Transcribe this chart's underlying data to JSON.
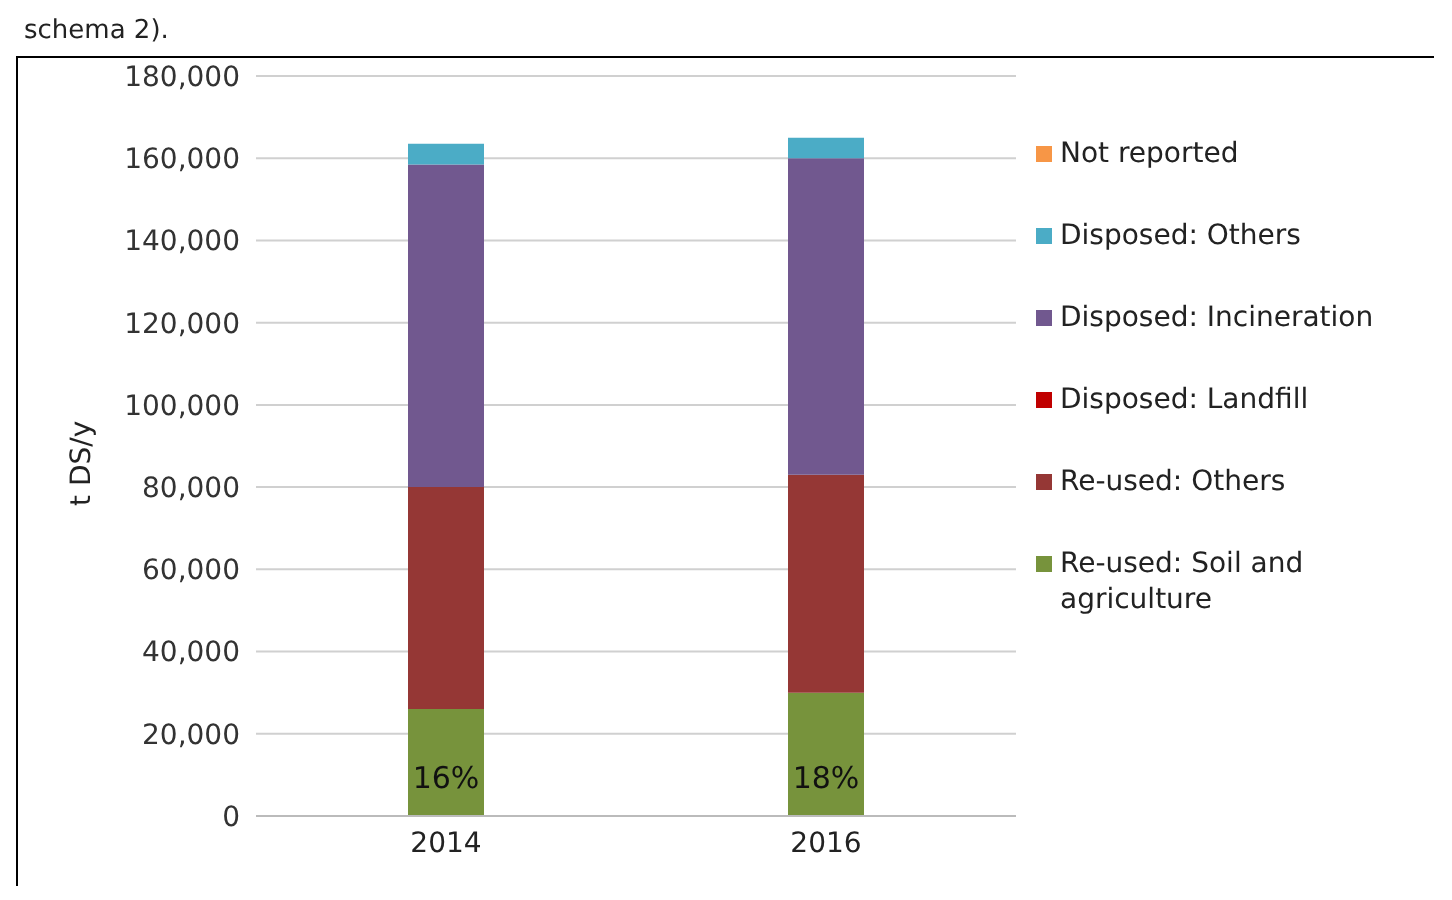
{
  "chart_data": {
    "type": "bar",
    "stacked": true,
    "categories": [
      "2014",
      "2016"
    ],
    "ylabel": "t DS/y",
    "ylim": [
      0,
      180000
    ],
    "yticks": [
      {
        "value": 0,
        "label": "0"
      },
      {
        "value": 20000,
        "label": "20,000"
      },
      {
        "value": 40000,
        "label": "40,000"
      },
      {
        "value": 60000,
        "label": "60,000"
      },
      {
        "value": 80000,
        "label": "80,000"
      },
      {
        "value": 100000,
        "label": "100,000"
      },
      {
        "value": 120000,
        "label": "120,000"
      },
      {
        "value": 140000,
        "label": "140,000"
      },
      {
        "value": 160000,
        "label": "160,000"
      },
      {
        "value": 180000,
        "label": "180,000"
      }
    ],
    "grid": "y",
    "legend": "right",
    "annotations": [
      "schema 2).",
      "16%",
      "18%"
    ],
    "series": [
      {
        "name": "Re-used: Soil and agriculture",
        "color": "#77933c",
        "values": [
          26000,
          30000
        ]
      },
      {
        "name": "Re-used: Others",
        "color": "#953735",
        "values": [
          54000,
          53000
        ]
      },
      {
        "name": "Disposed: Landfill",
        "color": "#c00000",
        "values": [
          0,
          0
        ]
      },
      {
        "name": "Disposed: Incineration",
        "color": "#71588f",
        "values": [
          78500,
          77000
        ]
      },
      {
        "name": "Disposed: Others",
        "color": "#4bacc6",
        "values": [
          5000,
          5000
        ]
      },
      {
        "name": "Not reported",
        "color": "#f79646",
        "values": [
          0,
          0
        ]
      }
    ]
  }
}
